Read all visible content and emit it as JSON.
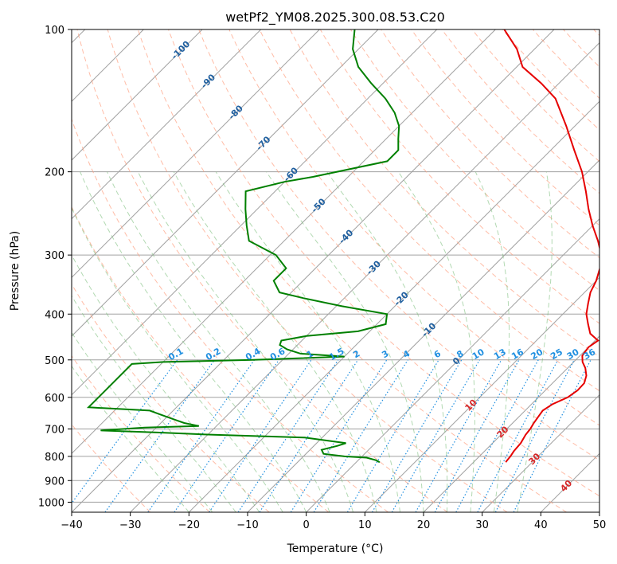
{
  "chart_data": {
    "type": "line",
    "title": "wetPf2_YM08.2025.300.08.53.C20",
    "xlabel": "Temperature (°C)",
    "ylabel": "Pressure (hPa)",
    "xlim": [
      -40,
      50
    ],
    "ylim": [
      1050,
      100
    ],
    "y_scale": "log",
    "skew": 1.0,
    "grid": true,
    "x_ticks": [
      -40,
      -30,
      -20,
      -10,
      0,
      10,
      20,
      30,
      40,
      50
    ],
    "y_ticks": [
      100,
      200,
      300,
      400,
      500,
      600,
      700,
      800,
      900,
      1000
    ],
    "colors": {
      "temperature": "#e60000",
      "dewpoint": "#008000",
      "isotherm": "#a0a0a0",
      "dry_adiabat": "#ff9f80",
      "moist_adiabat": "#7fbf7f",
      "mixing_ratio": "#1f8fe0",
      "isotherm_label": "#1f5f9f",
      "dry_adiabat_label": "#d62728"
    },
    "isotherm_labels": [
      "-100",
      "-90",
      "-80",
      "-70",
      "-60",
      "-50",
      "-40",
      "-30",
      "-20",
      "-10",
      "0"
    ],
    "dry_adiabat_labels": [
      "10",
      "20",
      "30",
      "40"
    ],
    "mixing_ratio_labels": [
      "0.1",
      "0.2",
      "0.4",
      "0.6",
      "1",
      "1.5",
      "2",
      "3",
      "4",
      "6",
      "8",
      "10",
      "13",
      "16",
      "20",
      "25",
      "30",
      "36"
    ],
    "series": [
      {
        "name": "Temperature",
        "pressure": [
          823,
          815,
          800,
          780,
          750,
          720,
          700,
          680,
          660,
          640,
          620,
          600,
          580,
          560,
          540,
          520,
          505,
          490,
          470,
          455,
          440,
          420,
          400,
          380,
          360,
          340,
          320,
          300,
          280,
          260,
          240,
          220,
          200,
          180,
          160,
          140,
          130,
          120,
          110,
          100
        ],
        "temperature": [
          25.5,
          25.4,
          25.3,
          25.0,
          24.8,
          24.2,
          24.0,
          23.6,
          23.3,
          23.0,
          23.6,
          25.0,
          25.5,
          25.4,
          24.5,
          23.0,
          21.5,
          20.4,
          20.0,
          20.5,
          18.0,
          16.0,
          14.0,
          12.5,
          11.0,
          10.0,
          8.5,
          6.5,
          3.5,
          0.0,
          -3.5,
          -7.0,
          -11.0,
          -16.0,
          -21.5,
          -28.0,
          -33.0,
          -39.0,
          -43.0,
          -48.5
        ]
      },
      {
        "name": "Dewpoint",
        "pressure": [
          823,
          815,
          805,
          800,
          790,
          775,
          760,
          750,
          730,
          720,
          712,
          705,
          695,
          690,
          680,
          670,
          660,
          650,
          640,
          630,
          510,
          505,
          500,
          492,
          485,
          475,
          465,
          455,
          445,
          435,
          420,
          400,
          385,
          370,
          360,
          340,
          320,
          300,
          280,
          260,
          240,
          220,
          210,
          205,
          190,
          180,
          170,
          160,
          150,
          140,
          130,
          120,
          110,
          100
        ],
        "dewpoint": [
          4.0,
          3.0,
          1.0,
          -3.0,
          -7.0,
          -8.0,
          -6.0,
          -5.0,
          -13.0,
          -29.0,
          -39.0,
          -49.0,
          -42.0,
          -33.0,
          -36.0,
          -38.0,
          -40.0,
          -42.0,
          -44.0,
          -55.0,
          -55.0,
          -50.0,
          -35.0,
          -20.0,
          -28.0,
          -31.0,
          -33.0,
          -33.5,
          -30.0,
          -22.0,
          -18.5,
          -20.0,
          -29.0,
          -37.0,
          -42.0,
          -45.0,
          -45.0,
          -49.0,
          -56.0,
          -59.0,
          -62.0,
          -65.0,
          -60.0,
          -56.0,
          -46.0,
          -46.0,
          -48.0,
          -50.0,
          -53.0,
          -57.0,
          -62.0,
          -67.0,
          -71.0,
          -74.0
        ]
      }
    ]
  }
}
